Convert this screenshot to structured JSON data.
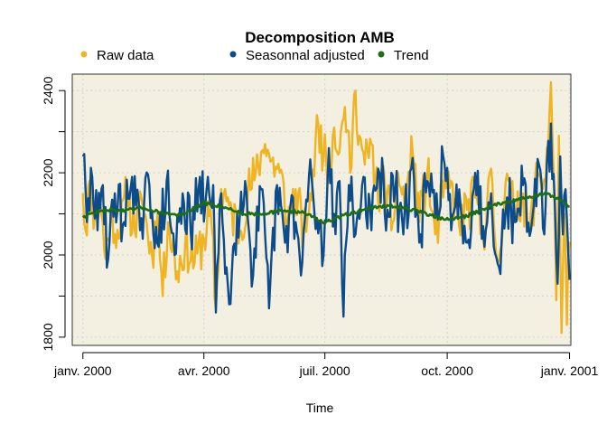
{
  "chart_data": {
    "type": "line",
    "title": "Decomposition AMB",
    "xlabel": "Time",
    "ylabel": "",
    "x_start": "2000-01-01",
    "x_end": "2001-01-01",
    "xlim": [
      "1999-12-24",
      "2001-01-02"
    ],
    "ylim": [
      1780,
      2440
    ],
    "y_ticks": [
      1800,
      2000,
      2200,
      2400
    ],
    "y_minor_ticks": [
      1900,
      2100,
      2300
    ],
    "x_ticks": [
      {
        "date": "2000-01-01",
        "label": "janv. 2000"
      },
      {
        "date": "2000-04-01",
        "label": "avr. 2000"
      },
      {
        "date": "2000-07-01",
        "label": "juil. 2000"
      },
      {
        "date": "2000-10-01",
        "label": "oct. 2000"
      },
      {
        "date": "2001-01-01",
        "label": "janv. 2001"
      }
    ],
    "background": "#f3f0e2",
    "grid": true,
    "legend_position": "top",
    "series": [
      {
        "name": "Raw data",
        "color": "#eeb422",
        "anchors": [
          [
            "2000-01-01",
            1920
          ],
          [
            "2000-01-01",
            2150
          ],
          [
            "2000-01-03",
            2060
          ],
          [
            "2000-01-06",
            2180
          ],
          [
            "2000-01-10",
            2090
          ],
          [
            "2000-01-14",
            2130
          ],
          [
            "2000-01-18",
            1990
          ],
          [
            "2000-01-22",
            2110
          ],
          [
            "2000-01-28",
            2040
          ],
          [
            "2000-02-03",
            2150
          ],
          [
            "2000-02-09",
            2060
          ],
          [
            "2000-02-15",
            2120
          ],
          [
            "2000-02-22",
            2000
          ],
          [
            "2000-02-26",
            2100
          ],
          [
            "2000-03-01",
            1900
          ],
          [
            "2000-03-05",
            2080
          ],
          [
            "2000-03-12",
            1960
          ],
          [
            "2000-03-18",
            2030
          ],
          [
            "2000-03-25",
            1980
          ],
          [
            "2000-04-01",
            2040
          ],
          [
            "2000-04-06",
            2110
          ],
          [
            "2000-04-10",
            1870
          ],
          [
            "2000-04-14",
            2160
          ],
          [
            "2000-04-20",
            2120
          ],
          [
            "2000-04-28",
            2060
          ],
          [
            "2000-05-04",
            2150
          ],
          [
            "2000-05-10",
            2200
          ],
          [
            "2000-05-14",
            2250
          ],
          [
            "2000-05-17",
            2270
          ],
          [
            "2000-05-22",
            2230
          ],
          [
            "2000-05-28",
            2200
          ],
          [
            "2000-06-03",
            2090
          ],
          [
            "2000-06-09",
            2160
          ],
          [
            "2000-06-15",
            2050
          ],
          [
            "2000-06-20",
            2150
          ],
          [
            "2000-06-26",
            2320
          ],
          [
            "2000-06-30",
            2240
          ],
          [
            "2000-07-04",
            2210
          ],
          [
            "2000-07-08",
            2310
          ],
          [
            "2000-07-12",
            2250
          ],
          [
            "2000-07-16",
            2360
          ],
          [
            "2000-07-20",
            2200
          ],
          [
            "2000-07-24",
            2400
          ],
          [
            "2000-07-27",
            2290
          ],
          [
            "2000-07-31",
            2220
          ],
          [
            "2000-08-05",
            2270
          ],
          [
            "2000-08-10",
            2130
          ],
          [
            "2000-08-15",
            2180
          ],
          [
            "2000-08-20",
            2060
          ],
          [
            "2000-08-25",
            2200
          ],
          [
            "2000-08-30",
            2120
          ],
          [
            "2000-09-05",
            2250
          ],
          [
            "2000-09-10",
            2080
          ],
          [
            "2000-09-16",
            2200
          ],
          [
            "2000-09-22",
            2050
          ],
          [
            "2000-09-28",
            2140
          ],
          [
            "2000-10-04",
            2180
          ],
          [
            "2000-10-10",
            2070
          ],
          [
            "2000-10-16",
            2110
          ],
          [
            "2000-10-22",
            2140
          ],
          [
            "2000-10-28",
            2040
          ],
          [
            "2000-11-02",
            2200
          ],
          [
            "2000-11-08",
            1980
          ],
          [
            "2000-11-14",
            2180
          ],
          [
            "2000-11-20",
            2110
          ],
          [
            "2000-11-26",
            2150
          ],
          [
            "2000-12-02",
            2060
          ],
          [
            "2000-12-08",
            2200
          ],
          [
            "2000-12-14",
            2180
          ],
          [
            "2000-12-18",
            2420
          ],
          [
            "2000-12-20",
            2200
          ],
          [
            "2000-12-22",
            1890
          ],
          [
            "2000-12-24",
            2290
          ],
          [
            "2000-12-26",
            1810
          ],
          [
            "2000-12-28",
            2100
          ],
          [
            "2000-12-30",
            1830
          ],
          [
            "2000-12-31",
            2000
          ]
        ]
      },
      {
        "name": "Seasonnal adjusted",
        "color": "#0c4c8a",
        "anchors": [
          [
            "2000-01-01",
            2100
          ],
          [
            "2000-01-01",
            2240
          ],
          [
            "2000-01-04",
            2080
          ],
          [
            "2000-01-08",
            2190
          ],
          [
            "2000-01-12",
            2060
          ],
          [
            "2000-01-16",
            2170
          ],
          [
            "2000-01-20",
            1990
          ],
          [
            "2000-01-25",
            2150
          ],
          [
            "2000-02-01",
            2080
          ],
          [
            "2000-02-07",
            2190
          ],
          [
            "2000-02-13",
            2060
          ],
          [
            "2000-02-20",
            2170
          ],
          [
            "2000-02-27",
            2020
          ],
          [
            "2000-03-04",
            2180
          ],
          [
            "2000-03-10",
            2000
          ],
          [
            "2000-03-16",
            2150
          ],
          [
            "2000-03-22",
            2060
          ],
          [
            "2000-03-28",
            2160
          ],
          [
            "2000-04-02",
            2120
          ],
          [
            "2000-04-08",
            2170
          ],
          [
            "2000-04-10",
            1860
          ],
          [
            "2000-04-14",
            2150
          ],
          [
            "2000-04-20",
            1880
          ],
          [
            "2000-04-26",
            2100
          ],
          [
            "2000-05-02",
            2180
          ],
          [
            "2000-05-08",
            1950
          ],
          [
            "2000-05-14",
            2160
          ],
          [
            "2000-05-20",
            1870
          ],
          [
            "2000-05-26",
            2170
          ],
          [
            "2000-06-01",
            2030
          ],
          [
            "2000-06-07",
            2140
          ],
          [
            "2000-06-13",
            1950
          ],
          [
            "2000-06-19",
            2190
          ],
          [
            "2000-06-25",
            2090
          ],
          [
            "2000-06-30",
            2000
          ],
          [
            "2000-07-04",
            2260
          ],
          [
            "2000-07-08",
            2100
          ],
          [
            "2000-07-12",
            2180
          ],
          [
            "2000-07-15",
            1850
          ],
          [
            "2000-07-19",
            2170
          ],
          [
            "2000-07-24",
            2050
          ],
          [
            "2000-07-30",
            2190
          ],
          [
            "2000-08-05",
            2060
          ],
          [
            "2000-08-11",
            2200
          ],
          [
            "2000-08-17",
            2110
          ],
          [
            "2000-08-23",
            2160
          ],
          [
            "2000-08-29",
            2050
          ],
          [
            "2000-09-04",
            2210
          ],
          [
            "2000-09-10",
            2030
          ],
          [
            "2000-09-16",
            2180
          ],
          [
            "2000-09-22",
            2090
          ],
          [
            "2000-09-28",
            2240
          ],
          [
            "2000-10-04",
            2060
          ],
          [
            "2000-10-10",
            2160
          ],
          [
            "2000-10-16",
            2030
          ],
          [
            "2000-10-22",
            2200
          ],
          [
            "2000-10-28",
            2070
          ],
          [
            "2000-11-03",
            2150
          ],
          [
            "2000-11-09",
            1970
          ],
          [
            "2000-11-15",
            2140
          ],
          [
            "2000-11-21",
            2080
          ],
          [
            "2000-11-27",
            2170
          ],
          [
            "2000-12-03",
            2060
          ],
          [
            "2000-12-09",
            2220
          ],
          [
            "2000-12-13",
            2050
          ],
          [
            "2000-12-18",
            2320
          ],
          [
            "2000-12-21",
            2120
          ],
          [
            "2000-12-23",
            1930
          ],
          [
            "2000-12-25",
            2240
          ],
          [
            "2000-12-27",
            2050
          ],
          [
            "2000-12-29",
            2160
          ],
          [
            "2000-12-31",
            2010
          ]
        ]
      },
      {
        "name": "Trend",
        "color": "#1e6e14",
        "anchors": [
          [
            "2000-01-01",
            2093
          ],
          [
            "2000-01-10",
            2103
          ],
          [
            "2000-01-20",
            2110
          ],
          [
            "2000-02-01",
            2107
          ],
          [
            "2000-02-15",
            2115
          ],
          [
            "2000-03-01",
            2102
          ],
          [
            "2000-03-15",
            2096
          ],
          [
            "2000-04-01",
            2126
          ],
          [
            "2000-04-15",
            2118
          ],
          [
            "2000-05-01",
            2100
          ],
          [
            "2000-05-15",
            2101
          ],
          [
            "2000-06-01",
            2108
          ],
          [
            "2000-06-15",
            2104
          ],
          [
            "2000-07-01",
            2078
          ],
          [
            "2000-07-15",
            2096
          ],
          [
            "2000-08-01",
            2112
          ],
          [
            "2000-08-15",
            2120
          ],
          [
            "2000-09-01",
            2113
          ],
          [
            "2000-09-15",
            2100
          ],
          [
            "2000-10-01",
            2086
          ],
          [
            "2000-10-15",
            2094
          ],
          [
            "2000-11-01",
            2117
          ],
          [
            "2000-11-15",
            2130
          ],
          [
            "2000-12-01",
            2140
          ],
          [
            "2000-12-15",
            2150
          ],
          [
            "2001-01-01",
            2120
          ]
        ]
      }
    ]
  }
}
